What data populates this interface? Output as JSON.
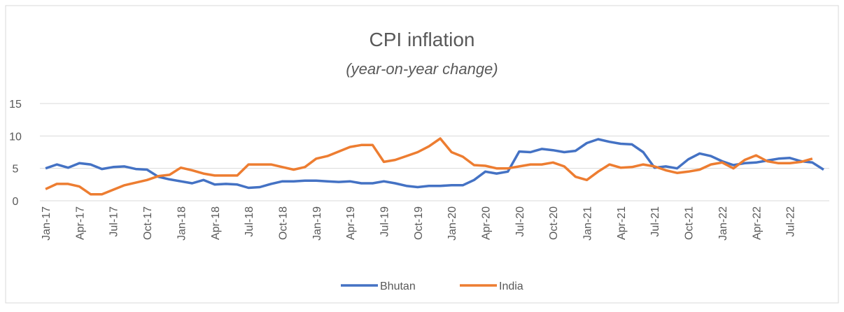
{
  "chart_data": {
    "type": "line",
    "title": "CPI inflation",
    "subtitle": "(year-on-year change)",
    "categories": [
      "Jan-17",
      null,
      null,
      "Apr-17",
      null,
      null,
      "Jul-17",
      null,
      null,
      "Oct-17",
      null,
      null,
      "Jan-18",
      null,
      null,
      "Apr-18",
      null,
      null,
      "Jul-18",
      null,
      null,
      "Oct-18",
      null,
      null,
      "Jan-19",
      null,
      null,
      "Apr-19",
      null,
      null,
      "Jul-19",
      null,
      null,
      "Oct-19",
      null,
      null,
      "Jan-20",
      null,
      null,
      "Apr-20",
      null,
      null,
      "Jul-20",
      null,
      null,
      "Oct-20",
      null,
      null,
      "Jan-21",
      null,
      null,
      "Apr-21",
      null,
      null,
      "Jul-21",
      null,
      null,
      "Oct-21",
      null,
      null,
      "Jan-22",
      null,
      null,
      "Apr-22",
      null,
      null,
      "Jul-22",
      null,
      null,
      null
    ],
    "series": [
      {
        "name": "Bhutan",
        "color": "#4472c4",
        "values": [
          5.0,
          5.6,
          5.1,
          5.8,
          5.6,
          4.9,
          5.2,
          5.3,
          4.9,
          4.8,
          3.7,
          3.3,
          3.0,
          2.7,
          3.2,
          2.5,
          2.6,
          2.5,
          2.0,
          2.1,
          2.6,
          3.0,
          3.0,
          3.1,
          3.1,
          3.0,
          2.9,
          3.0,
          2.7,
          2.7,
          3.0,
          2.7,
          2.3,
          2.1,
          2.3,
          2.3,
          2.4,
          2.4,
          3.2,
          4.5,
          4.2,
          4.5,
          7.6,
          7.5,
          8.0,
          7.8,
          7.5,
          7.7,
          8.9,
          9.5,
          9.1,
          8.8,
          8.7,
          7.5,
          5.1,
          5.3,
          5.0,
          6.4,
          7.3,
          6.9,
          6.1,
          5.5,
          5.8,
          5.9,
          6.2,
          6.5,
          6.6,
          6.1,
          5.9,
          4.8
        ]
      },
      {
        "name": "India",
        "color": "#ed7d31",
        "values": [
          1.8,
          2.6,
          2.6,
          2.2,
          1.0,
          1.0,
          1.7,
          2.4,
          2.8,
          3.2,
          3.8,
          4.0,
          5.1,
          4.7,
          4.2,
          3.9,
          3.9,
          3.9,
          5.6,
          5.6,
          5.6,
          5.2,
          4.8,
          5.2,
          6.5,
          6.9,
          7.6,
          8.3,
          8.6,
          8.6,
          6.0,
          6.3,
          6.9,
          7.5,
          8.4,
          9.6,
          7.5,
          6.8,
          5.5,
          5.4,
          5.0,
          5.0,
          5.3,
          5.6,
          5.6,
          5.9,
          5.3,
          3.7,
          3.2,
          4.5,
          5.6,
          5.1,
          5.2,
          5.6,
          5.3,
          4.7,
          4.3,
          4.5,
          4.8,
          5.6,
          5.9,
          5.0,
          6.3,
          7.0,
          6.1,
          5.8,
          5.8,
          6.0,
          6.5,
          null
        ]
      }
    ],
    "ylim": [
      0,
      15
    ],
    "yticks": [
      0,
      5,
      10,
      15
    ],
    "grid": true,
    "legend": "bottom"
  }
}
